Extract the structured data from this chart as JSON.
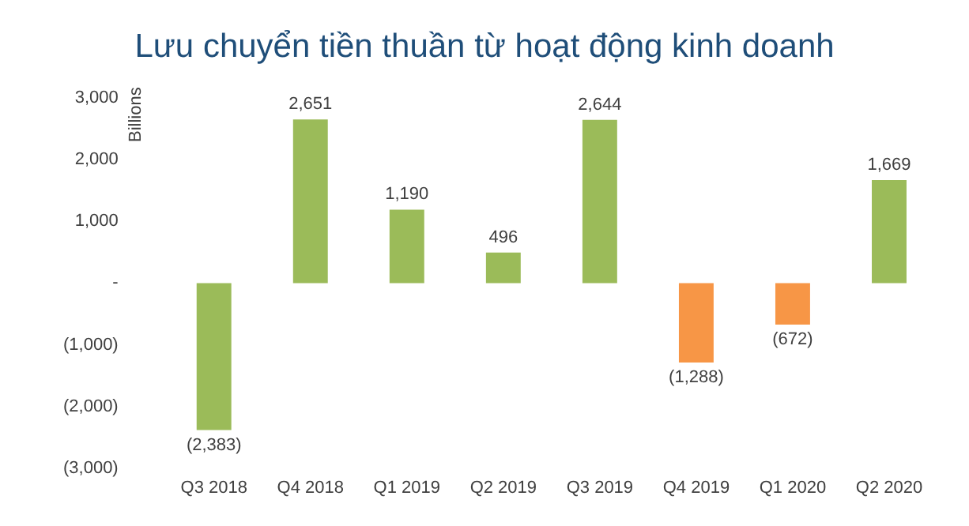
{
  "chart_data": {
    "type": "bar",
    "title": "Lưu chuyển tiền thuần từ hoạt động kinh doanh",
    "ylabel": "Billions",
    "categories": [
      "Q3 2018",
      "Q4 2018",
      "Q1 2019",
      "Q2 2019",
      "Q3 2019",
      "Q4 2019",
      "Q1 2020",
      "Q2 2020"
    ],
    "values": [
      -2383,
      2651,
      1190,
      496,
      2644,
      -1288,
      -672,
      1669
    ],
    "colors": [
      "#9bbb59",
      "#9bbb59",
      "#9bbb59",
      "#9bbb59",
      "#9bbb59",
      "#f79646",
      "#f79646",
      "#9bbb59"
    ],
    "value_labels": [
      "(2,383)",
      "2,651",
      "1,190",
      "496",
      "2,644",
      "(1,288)",
      "(672)",
      "1,669"
    ],
    "ylim": [
      -3000,
      3000
    ],
    "yticks": [
      {
        "value": -3000,
        "label": "(3,000)"
      },
      {
        "value": -2000,
        "label": "(2,000)"
      },
      {
        "value": -1000,
        "label": "(1,000)"
      },
      {
        "value": 0,
        "label": "-"
      },
      {
        "value": 1000,
        "label": "1,000"
      },
      {
        "value": 2000,
        "label": "2,000"
      },
      {
        "value": 3000,
        "label": "3,000"
      }
    ],
    "grid": false,
    "legend": false
  }
}
